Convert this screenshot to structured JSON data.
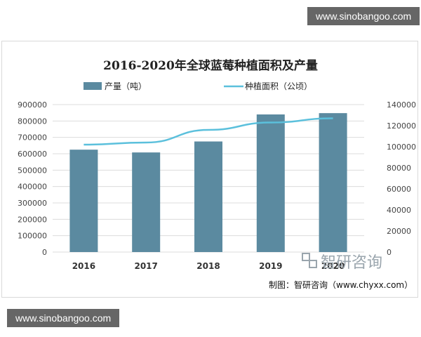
{
  "watermarks": {
    "top": "www.sinobangoo.com",
    "bottom": "www.sinobangoo.com"
  },
  "source_text": "制图：智研咨询（www.chyxx.com）",
  "logo_text": "智研咨询",
  "colors": {
    "bar": "#5b8aa0",
    "line": "#5bc0dc",
    "grid": "#dcdcdc"
  },
  "chart_data": {
    "type": "bar",
    "title": "2016-2020年全球蓝莓种植面积及产量",
    "legend_position": "top",
    "categories": [
      "2016",
      "2017",
      "2018",
      "2019",
      "2020"
    ],
    "series": [
      {
        "name": "产量（吨）",
        "type": "bar",
        "axis": "left",
        "values": [
          625000,
          608000,
          675000,
          840000,
          848000
        ]
      },
      {
        "name": "种植面积（公顷）",
        "type": "line",
        "axis": "right",
        "values": [
          102000,
          104000,
          116000,
          123000,
          127000
        ]
      }
    ],
    "y_left": {
      "min": 0,
      "max": 900000,
      "step": 100000,
      "ticks": [
        "0",
        "100000",
        "200000",
        "300000",
        "400000",
        "500000",
        "600000",
        "700000",
        "800000",
        "900000"
      ]
    },
    "y_right": {
      "min": 0,
      "max": 140000,
      "step": 20000,
      "ticks": [
        "0",
        "20000",
        "40000",
        "60000",
        "80000",
        "100000",
        "120000",
        "140000"
      ]
    },
    "grid": true
  }
}
